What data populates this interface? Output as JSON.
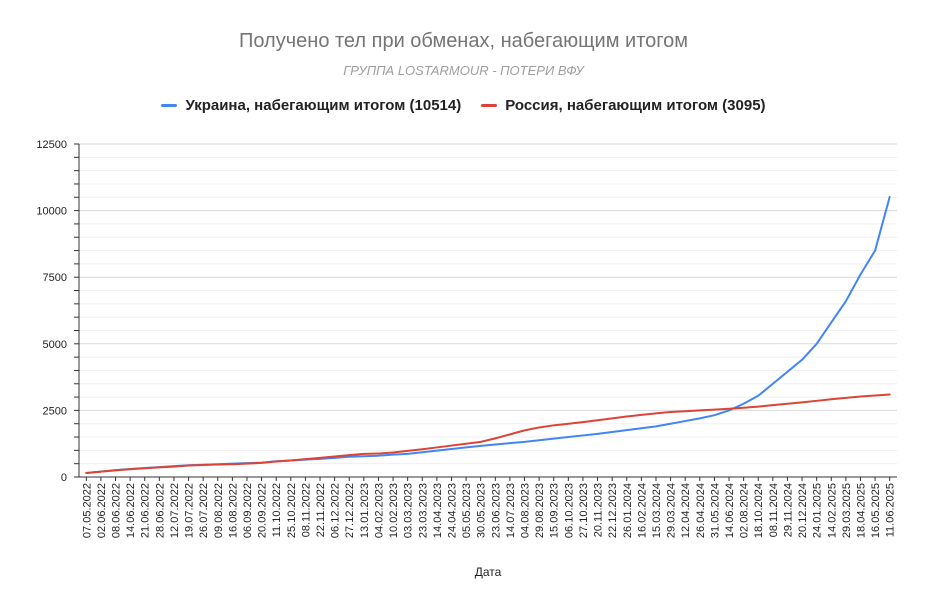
{
  "chart_data": {
    "type": "line",
    "title": "Получено тел при обменах, набегающим итогом",
    "subtitle": "ГРУППА LOSTARMOUR - ПОТЕРИ ВФУ",
    "xlabel": "Дата",
    "ylabel": "",
    "ylim": [
      0,
      12500
    ],
    "yticks": [
      "0",
      "2500",
      "5000",
      "7500",
      "10000",
      "12500"
    ],
    "grid": true,
    "legend_position": "top",
    "categories": [
      "07.05.2022",
      "02.06.2022",
      "08.06.2022",
      "14.06.2022",
      "21.06.2022",
      "28.06.2022",
      "12.07.2022",
      "19.07.2022",
      "26.07.2022",
      "09.08.2022",
      "16.08.2022",
      "06.09.2022",
      "20.09.2022",
      "11.10.2022",
      "25.10.2022",
      "08.11.2022",
      "22.11.2022",
      "06.12.2022",
      "27.12.2022",
      "13.01.2023",
      "04.02.2023",
      "10.02.2023",
      "03.03.2023",
      "23.03.2023",
      "14.04.2023",
      "24.04.2023",
      "05.05.2023",
      "30.05.2023",
      "23.06.2023",
      "14.07.2023",
      "04.08.2023",
      "29.08.2023",
      "15.09.2023",
      "06.10.2023",
      "27.10.2023",
      "20.11.2023",
      "22.12.2023",
      "26.01.2024",
      "16.02.2024",
      "15.03.2024",
      "29.03.2024",
      "12.04.2024",
      "26.04.2024",
      "31.05.2024",
      "14.06.2024",
      "02.08.2024",
      "18.10.2024",
      "08.11.2024",
      "29.11.2024",
      "20.12.2024",
      "24.01.2025",
      "14.02.2025",
      "29.03.2025",
      "18.04.2025",
      "16.05.2025",
      "11.06.2025"
    ],
    "series": [
      {
        "name": "Украина, набегающим итогом (10514)",
        "color": "#4285f4",
        "values": [
          150,
          200,
          260,
          300,
          340,
          370,
          410,
          440,
          460,
          480,
          500,
          520,
          540,
          590,
          620,
          650,
          680,
          720,
          760,
          780,
          800,
          840,
          870,
          930,
          990,
          1050,
          1110,
          1170,
          1220,
          1270,
          1320,
          1380,
          1440,
          1500,
          1560,
          1620,
          1690,
          1760,
          1830,
          1900,
          2000,
          2100,
          2200,
          2320,
          2500,
          2750,
          3050,
          3500,
          3950,
          4400,
          5000,
          5800,
          6600,
          7600,
          8500,
          10514
        ]
      },
      {
        "name": "Россия, набегающим итогом (3095)",
        "color": "#db4437",
        "values": [
          150,
          200,
          250,
          290,
          330,
          360,
          390,
          430,
          450,
          470,
          480,
          500,
          530,
          580,
          620,
          670,
          720,
          770,
          820,
          870,
          880,
          920,
          980,
          1040,
          1110,
          1180,
          1250,
          1320,
          1450,
          1600,
          1750,
          1860,
          1940,
          2000,
          2060,
          2130,
          2200,
          2270,
          2330,
          2390,
          2440,
          2470,
          2500,
          2530,
          2560,
          2600,
          2640,
          2700,
          2750,
          2800,
          2860,
          2920,
          2970,
          3020,
          3060,
          3095
        ]
      }
    ]
  }
}
